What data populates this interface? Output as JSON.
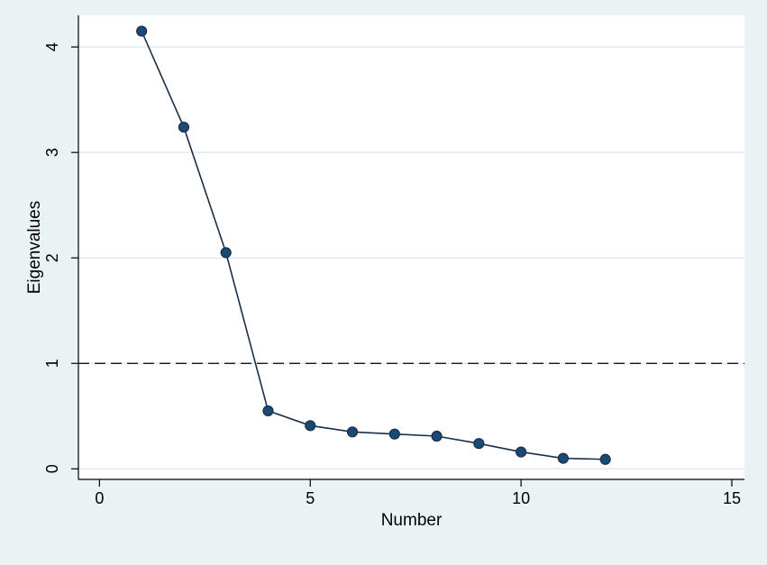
{
  "chart_data": {
    "type": "line",
    "title": "",
    "xlabel": "Number",
    "ylabel": "Eigenvalues",
    "xlim": [
      -0.5,
      15.3
    ],
    "ylim": [
      -0.1,
      4.3
    ],
    "x_ticks": [
      0,
      5,
      10,
      15
    ],
    "y_ticks": [
      0,
      1,
      2,
      3,
      4
    ],
    "x_tick_labels": [
      "0",
      "5",
      "10",
      "15"
    ],
    "y_tick_labels": [
      "0",
      "1",
      "2",
      "3",
      "4"
    ],
    "grid": "horizontal",
    "legend": "none",
    "x": [
      1,
      2,
      3,
      4,
      5,
      6,
      7,
      8,
      9,
      10,
      11,
      12
    ],
    "series": [
      {
        "values": [
          4.15,
          3.24,
          2.05,
          0.55,
          0.41,
          0.35,
          0.33,
          0.31,
          0.24,
          0.16,
          0.1,
          0.09
        ],
        "color": "#1a2e4a",
        "marker": "circle"
      }
    ],
    "reference_lines": [
      {
        "axis": "y",
        "value": 1,
        "style": "dashed",
        "color": "#000000"
      }
    ],
    "colors": {
      "outer_background": "#eaf2f3",
      "plot_background": "#ffffff",
      "grid": "#e0ecee",
      "series": "#1a2e4a",
      "marker_fill": "#1a4a73"
    }
  }
}
